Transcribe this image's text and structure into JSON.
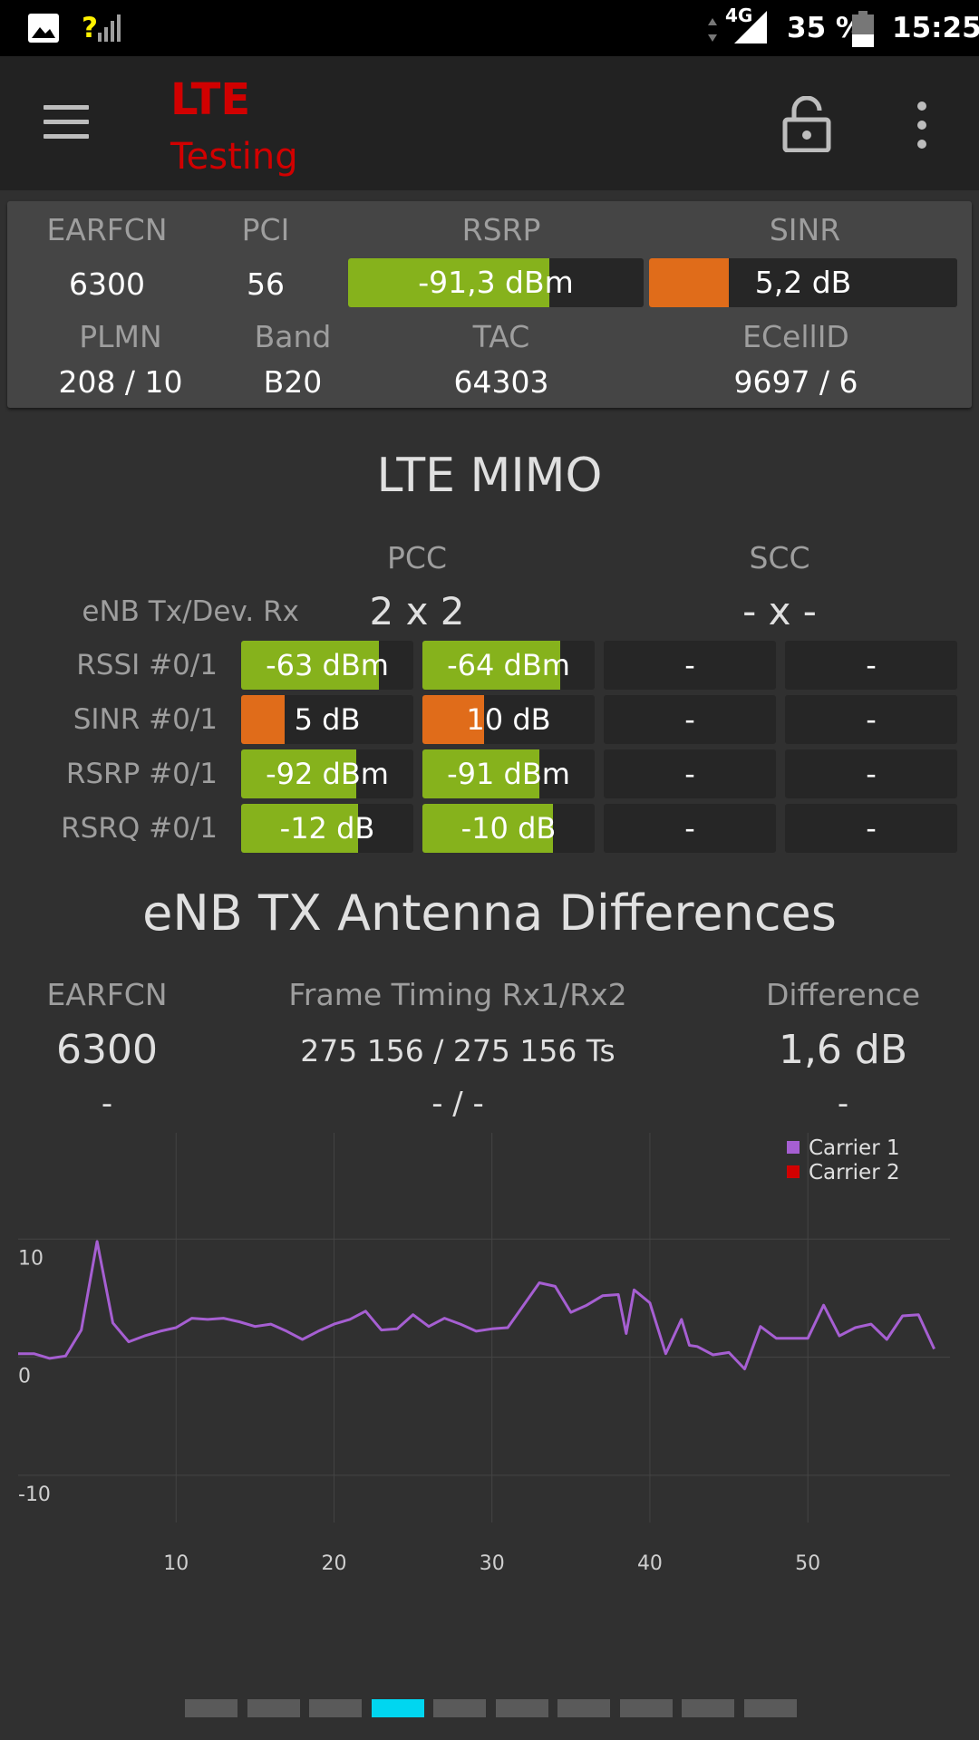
{
  "status_bar": {
    "signal_text": "?",
    "network": "4G",
    "battery": "35 %",
    "time": "15:25"
  },
  "toolbar": {
    "title_line1": "LTE",
    "title_line2": "Testing",
    "icons": [
      "menu-icon",
      "lock-icon",
      "more-vert-icon"
    ]
  },
  "info": {
    "earfcn_label": "EARFCN",
    "earfcn": "6300",
    "pci_label": "PCI",
    "pci": "56",
    "rsrp_label": "RSRP",
    "rsrp": "-91,3 dBm",
    "rsrp_fill": 0.68,
    "sinr_label": "SINR",
    "sinr": "5,2 dB",
    "sinr_fill": 0.26,
    "plmn_label": "PLMN",
    "plmn": "208 / 10",
    "band_label": "Band",
    "band": "B20",
    "tac_label": "TAC",
    "tac": "64303",
    "ecellid_label": "ECellID",
    "ecellid": "9697 / 6"
  },
  "mimo": {
    "heading": "LTE MIMO",
    "pcc_label": "PCC",
    "scc_label": "SCC",
    "enb_label": "eNB Tx/Dev. Rx",
    "pcc_value": "2 x 2",
    "scc_value": "- x -",
    "rows": [
      {
        "label": "RSSI #0/1",
        "c1": "-63 dBm",
        "f1": 0.8,
        "c2": "-64 dBm",
        "f2": 0.8,
        "c3": "-",
        "c4": "-"
      },
      {
        "label": "SINR #0/1",
        "c1": "5 dB",
        "f1": 0.25,
        "c2": "10 dB",
        "f2": 0.36,
        "c3": "-",
        "c4": "-"
      },
      {
        "label": "RSRP #0/1",
        "c1": "-92 dBm",
        "f1": 0.67,
        "c2": "-91 dBm",
        "f2": 0.68,
        "c3": "-",
        "c4": "-"
      },
      {
        "label": "RSRQ #0/1",
        "c1": "-12 dB",
        "f1": 0.68,
        "c2": "-10 dB",
        "f2": 0.76,
        "c3": "-",
        "c4": "-"
      }
    ]
  },
  "antenna": {
    "heading": "eNB TX Antenna Differences",
    "earfcn_label": "EARFCN",
    "timing_label": "Frame Timing Rx1/Rx2",
    "diff_label": "Difference",
    "earfcn": "6300",
    "timing": "275 156 / 275 156 Ts",
    "diff": "1,6 dB",
    "earfcn2": "-",
    "timing2": "- / -",
    "diff2": "-"
  },
  "chart_data": {
    "type": "line",
    "title": "",
    "xlabel": "",
    "ylabel": "",
    "xlim": [
      0,
      59
    ],
    "ylim": [
      -14,
      19
    ],
    "xticks": [
      10,
      20,
      30,
      40,
      50
    ],
    "yticks": [
      10,
      0,
      -10
    ],
    "grid": true,
    "legend_position": "top-right",
    "series": [
      {
        "name": "Carrier 1",
        "color": "#a65fd2",
        "x": [
          0,
          1,
          2,
          3,
          4,
          5,
          6,
          7,
          8,
          9,
          10,
          11,
          12,
          13,
          14,
          15,
          16,
          17,
          18,
          19,
          20,
          21,
          22,
          23,
          24,
          25,
          26,
          27,
          28,
          29,
          30,
          31,
          32,
          33,
          34,
          35,
          36,
          37,
          38,
          38.5,
          39,
          40,
          41,
          42,
          42.5,
          43,
          44,
          45,
          46,
          47,
          48,
          49,
          50,
          51,
          52,
          53,
          54,
          55,
          56,
          57,
          58
        ],
        "y": [
          0.3,
          0.3,
          -0.1,
          0.1,
          2.3,
          9.8,
          2.9,
          1.3,
          1.8,
          2.2,
          2.5,
          3.3,
          3.2,
          3.3,
          3.0,
          2.6,
          2.8,
          2.2,
          1.5,
          2.2,
          2.8,
          3.2,
          3.9,
          2.3,
          2.4,
          3.6,
          2.6,
          3.3,
          2.8,
          2.2,
          2.4,
          2.5,
          4.4,
          6.3,
          6.0,
          3.8,
          4.4,
          5.2,
          5.3,
          2.0,
          5.7,
          4.6,
          0.3,
          3.2,
          1.0,
          0.9,
          0.2,
          0.4,
          -1.0,
          2.6,
          1.6,
          1.6,
          1.6,
          4.4,
          1.8,
          2.5,
          2.8,
          1.5,
          3.5,
          3.6,
          0.7
        ]
      },
      {
        "name": "Carrier 2",
        "color": "#d10000",
        "x": [],
        "y": []
      }
    ]
  },
  "pager": {
    "count": 10,
    "active": 3,
    "active_color": "#00d6f0",
    "inactive_color": "#5a5a5a"
  }
}
